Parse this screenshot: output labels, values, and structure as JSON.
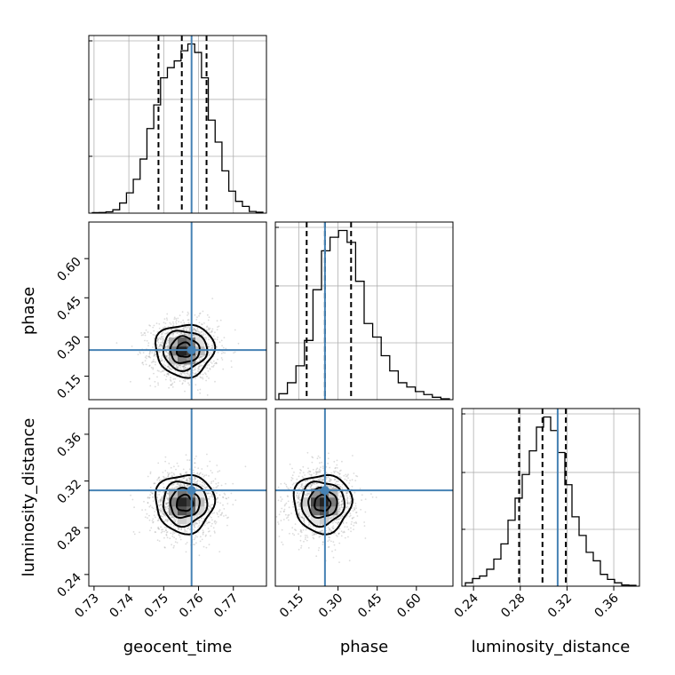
{
  "chart_data": {
    "type": "corner",
    "parameters": [
      "geocent_time",
      "phase",
      "luminosity_distance"
    ],
    "axis_labels": {
      "geocent_time": "geocent_time",
      "phase": "phase",
      "luminosity_distance": "luminosity_distance"
    },
    "ranges": {
      "geocent_time": [
        0.7285,
        0.7795
      ],
      "phase": [
        0.06,
        0.74
      ],
      "luminosity_distance": [
        0.23,
        0.382
      ]
    },
    "ticks": {
      "geocent_time": [
        0.73,
        0.74,
        0.75,
        0.76,
        0.77
      ],
      "phase": [
        0.15,
        0.3,
        0.45,
        0.6
      ],
      "luminosity_distance": [
        0.24,
        0.28,
        0.32,
        0.36
      ]
    },
    "tick_labels": {
      "geocent_time": [
        "0.73",
        "0.74",
        "0.75",
        "0.76",
        "0.77"
      ],
      "phase": [
        "0.15",
        "0.30",
        "0.45",
        "0.60"
      ],
      "luminosity_distance": [
        "0.24",
        "0.28",
        "0.32",
        "0.36"
      ]
    },
    "truths": {
      "geocent_time": 0.758,
      "phase": 0.25,
      "luminosity_distance": 0.312
    },
    "truth_color": "#4682b4",
    "quantiles": {
      "geocent_time": [
        0.7485,
        0.7552,
        0.7623
      ],
      "phase": [
        0.18,
        0.25,
        0.35
      ],
      "luminosity_distance": [
        0.279,
        0.299,
        0.319
      ]
    },
    "histograms": {
      "geocent_time": [
        0.003,
        0.004,
        0.008,
        0.02,
        0.06,
        0.12,
        0.2,
        0.32,
        0.5,
        0.64,
        0.8,
        0.86,
        0.9,
        0.96,
        1.0,
        0.95,
        0.8,
        0.55,
        0.42,
        0.25,
        0.13,
        0.07,
        0.04,
        0.01,
        0.006
      ],
      "phase": [
        0.035,
        0.1,
        0.2,
        0.35,
        0.65,
        0.88,
        0.96,
        1.0,
        0.93,
        0.7,
        0.45,
        0.37,
        0.26,
        0.17,
        0.1,
        0.075,
        0.048,
        0.03,
        0.014,
        0.005
      ],
      "luminosity_distance": [
        0.02,
        0.045,
        0.06,
        0.1,
        0.16,
        0.25,
        0.39,
        0.52,
        0.66,
        0.8,
        0.94,
        1.0,
        0.92,
        0.79,
        0.6,
        0.41,
        0.3,
        0.2,
        0.15,
        0.07,
        0.04,
        0.02,
        0.007,
        0.005
      ]
    },
    "joint": {
      "phase_vs_geocent_time": {
        "x_center": 0.756,
        "y_center": 0.25,
        "x_sd": 0.0042,
        "y_sd": 0.05,
        "rho": 0.0
      },
      "luminosity_distance_vs_geocent_time": {
        "x_center": 0.756,
        "y_center": 0.301,
        "x_sd": 0.0042,
        "y_sd": 0.0125,
        "rho": 0.0
      },
      "luminosity_distance_vs_phase": {
        "x_center": 0.24,
        "y_center": 0.301,
        "x_sd": 0.055,
        "y_sd": 0.0125,
        "rho": 0.0
      }
    },
    "grid": true,
    "legend": "none"
  }
}
